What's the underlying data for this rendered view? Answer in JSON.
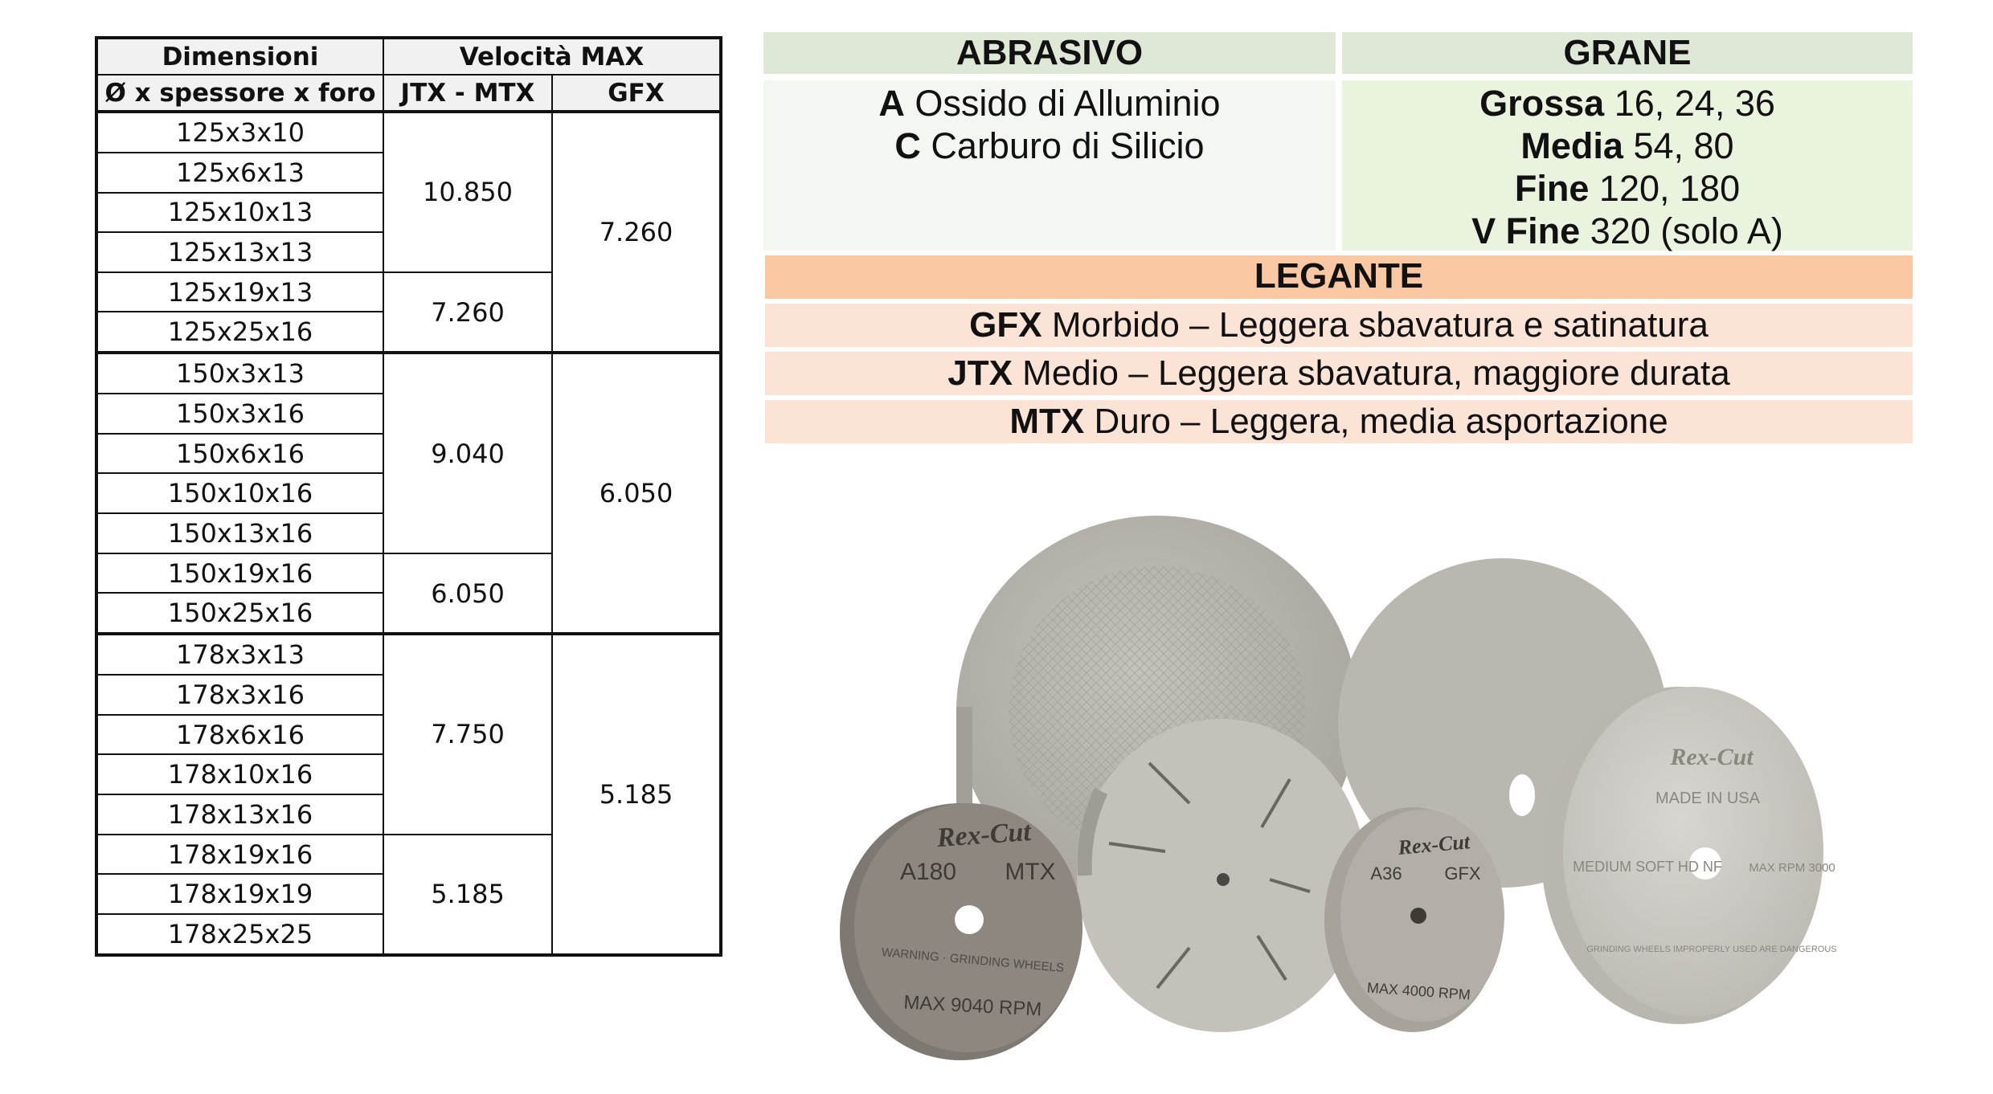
{
  "table": {
    "header": {
      "dim_line1": "Dimensioni",
      "dim_line2": "Ø x spessore x foro",
      "speed": "Velocità MAX",
      "jtx_mtx": "JTX - MTX",
      "gfx": "GFX"
    },
    "groups": [
      {
        "gfx": "7.260",
        "sub": [
          {
            "speed": "10.850",
            "rows": [
              "125x3x10",
              "125x6x13",
              "125x10x13",
              "125x13x13"
            ]
          },
          {
            "speed": "7.260",
            "rows": [
              "125x19x13",
              "125x25x16"
            ]
          }
        ]
      },
      {
        "gfx": "6.050",
        "sub": [
          {
            "speed": "9.040",
            "rows": [
              "150x3x13",
              "150x3x16",
              "150x6x16",
              "150x10x16",
              "150x13x16"
            ]
          },
          {
            "speed": "6.050",
            "rows": [
              "150x19x16",
              "150x25x16"
            ]
          }
        ]
      },
      {
        "gfx": "5.185",
        "sub": [
          {
            "speed": "7.750",
            "rows": [
              "178x3x13",
              "178x3x16",
              "178x6x16",
              "178x10x16",
              "178x13x16"
            ]
          },
          {
            "speed": "5.185",
            "rows": [
              "178x19x16",
              "178x19x19",
              "178x25x25"
            ]
          }
        ]
      }
    ]
  },
  "abrasivo": {
    "header": "ABRASIVO",
    "items": [
      {
        "code": "A",
        "text": " Ossido di Alluminio"
      },
      {
        "code": "C",
        "text": " Carburo di Silicio"
      }
    ]
  },
  "grane": {
    "header": "GRANE",
    "items": [
      {
        "label": "Grossa",
        "text": " 16, 24, 36"
      },
      {
        "label": "Media",
        "text": " 54, 80"
      },
      {
        "label": "Fine",
        "text": " 120, 180"
      },
      {
        "label": "V Fine",
        "text": " 320 (solo A)"
      }
    ]
  },
  "legante": {
    "header": "LEGANTE",
    "items": [
      {
        "code": "GFX",
        "text": " Morbido – Leggera sbavatura e satinatura"
      },
      {
        "code": "JTX",
        "text": " Medio – Leggera sbavatura, maggiore durata"
      },
      {
        "code": "MTX",
        "text": " Duro – Leggera, media asportazione"
      }
    ]
  },
  "photo": {
    "wheels": [
      {
        "brand": "Rex-Cut",
        "line1": "A180",
        "line2": "MTX",
        "rpm": "MAX 9040 RPM",
        "warning": "WARNING · GRINDING WHEELS",
        "color": "#8d8780"
      },
      {
        "brand": "Rex-Cut",
        "line1": "A36",
        "line2": "GFX",
        "rpm": "MAX 4000 RPM",
        "color": "#a7a39b"
      },
      {
        "brand": "Rex-Cut",
        "line1": "MADE IN USA",
        "line2": "MEDIUM SOFT HD NF",
        "rpm": "MAX RPM 3000",
        "warning": "GRINDING WHEELS IMPROPERLY USED ARE DANGEROUS",
        "color": "#c9c7c1"
      }
    ],
    "background_color": "#b7b5ae"
  }
}
